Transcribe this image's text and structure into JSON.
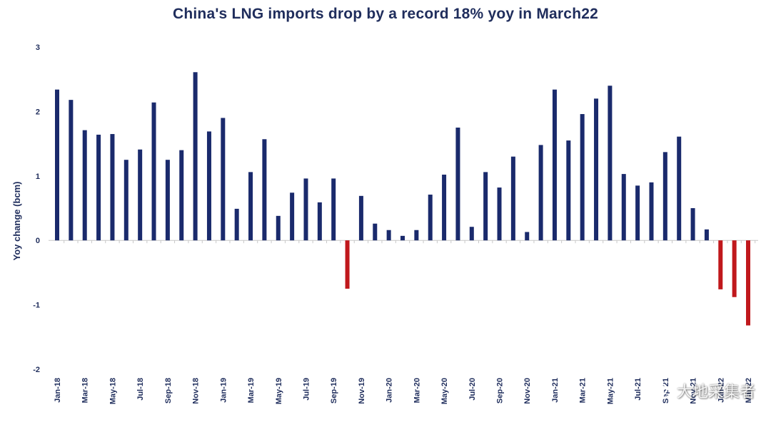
{
  "chart_data": {
    "type": "bar",
    "title": "China's LNG imports drop by a record 18% yoy in March22",
    "ylabel": "Yoy change (bcm)",
    "xlabel": "",
    "ylim": [
      -2,
      3
    ],
    "yticks": [
      3,
      2,
      1,
      0,
      -1,
      -2
    ],
    "grid": false,
    "legend": "none",
    "positive_color": "#1a2a6c",
    "negative_color": "#c0181c",
    "categories": [
      "Jan-18",
      "Feb-18",
      "Mar-18",
      "Apr-18",
      "May-18",
      "Jun-18",
      "Jul-18",
      "Aug-18",
      "Sep-18",
      "Oct-18",
      "Nov-18",
      "Dec-18",
      "Jan-19",
      "Feb-19",
      "Mar-19",
      "Apr-19",
      "May-19",
      "Jun-19",
      "Jul-19",
      "Aug-19",
      "Sep-19",
      "Oct-19",
      "Nov-19",
      "Dec-19",
      "Jan-20",
      "Feb-20",
      "Mar-20",
      "Apr-20",
      "May-20",
      "Jun-20",
      "Jul-20",
      "Aug-20",
      "Sep-20",
      "Oct-20",
      "Nov-20",
      "Dec-20",
      "Jan-21",
      "Feb-21",
      "Mar-21",
      "Apr-21",
      "May-21",
      "Jun-21",
      "Jul-21",
      "Aug-21",
      "Sep-21",
      "Oct-21",
      "Nov-21",
      "Dec-21",
      "Jan-22",
      "Feb-22",
      "Mar-22"
    ],
    "x_tick_labels": [
      "Jan-18",
      "Mar-18",
      "May-18",
      "Jul-18",
      "Sep-18",
      "Nov-18",
      "Jan-19",
      "Mar-19",
      "May-19",
      "Jul-19",
      "Sep-19",
      "Nov-19",
      "Jan-20",
      "Mar-20",
      "May-20",
      "Jul-20",
      "Sep-20",
      "Nov-20",
      "Jan-21",
      "Mar-21",
      "May-21",
      "Jul-21",
      "Sep-21",
      "Nov-21",
      "Jan-22",
      "Mar-22"
    ],
    "values": [
      2.34,
      2.18,
      1.71,
      1.64,
      1.65,
      1.25,
      1.41,
      2.14,
      1.25,
      1.4,
      2.61,
      1.69,
      1.9,
      0.49,
      1.06,
      1.57,
      0.38,
      0.74,
      0.96,
      0.59,
      0.96,
      -0.75,
      0.69,
      0.26,
      0.16,
      0.07,
      0.16,
      0.71,
      1.02,
      1.75,
      0.21,
      1.06,
      0.82,
      1.3,
      0.13,
      1.48,
      2.34,
      1.55,
      1.96,
      2.2,
      2.4,
      1.03,
      0.85,
      0.9,
      1.37,
      1.61,
      0.5,
      0.17,
      -0.76,
      -0.88,
      -1.32
    ]
  },
  "watermark": {
    "text": "大地采集者",
    "icon": "wechat-icon"
  }
}
